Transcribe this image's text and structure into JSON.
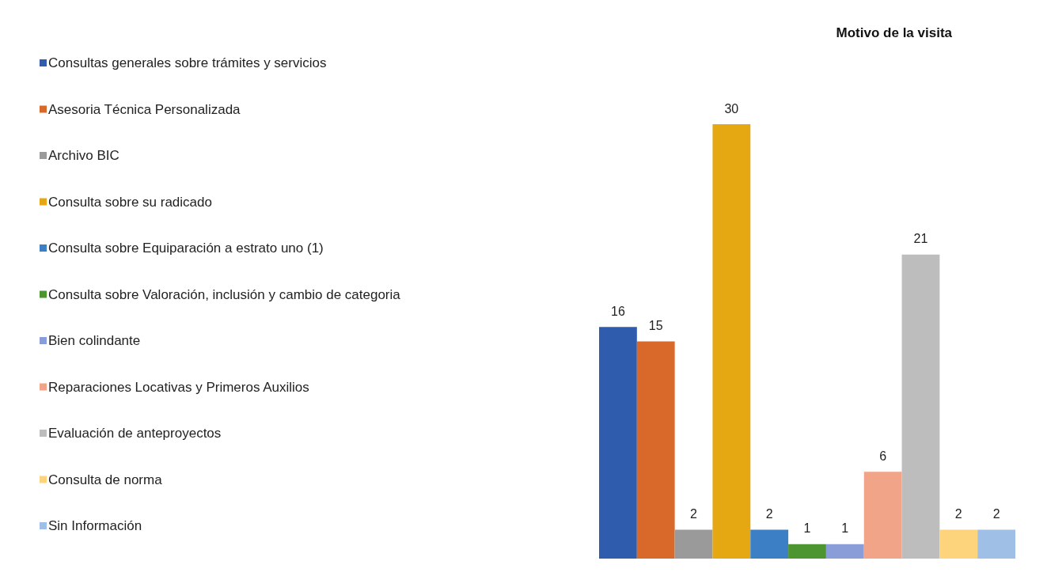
{
  "chart_data": {
    "type": "bar",
    "title": "Motivo de la visita",
    "categories": [
      null
    ],
    "series": [
      {
        "name": "Consultas generales sobre trámites y servicios",
        "color": "#2f5cad",
        "values": [
          16
        ]
      },
      {
        "name": "Asesoria Técnica Personalizada",
        "color": "#d9692b",
        "values": [
          15
        ]
      },
      {
        "name": "Archivo BIC",
        "color": "#9a9a9a",
        "values": [
          2
        ]
      },
      {
        "name": "Consulta sobre su radicado",
        "color": "#e5a812",
        "values": [
          30
        ]
      },
      {
        "name": "Consulta sobre Equiparación a estrato uno (1)",
        "color": "#3d7fc4",
        "values": [
          2
        ]
      },
      {
        "name": "Consulta sobre Valoración, inclusión y cambio de categoria",
        "color": "#4c9530",
        "values": [
          1
        ]
      },
      {
        "name": "Bien colindante",
        "color": "#8b9dd9",
        "values": [
          1
        ]
      },
      {
        "name": "Reparaciones Locativas y Primeros Auxilios",
        "color": "#f2a488",
        "values": [
          6
        ]
      },
      {
        "name": "Evaluación de anteproyectos",
        "color": "#bdbdbd",
        "values": [
          21
        ]
      },
      {
        "name": "Consulta de norma",
        "color": "#fdd47c",
        "values": [
          2
        ]
      },
      {
        "name": "Sin Información",
        "color": "#9fbfe6",
        "values": [
          2
        ]
      }
    ],
    "data_labels": true,
    "legend": "left"
  }
}
